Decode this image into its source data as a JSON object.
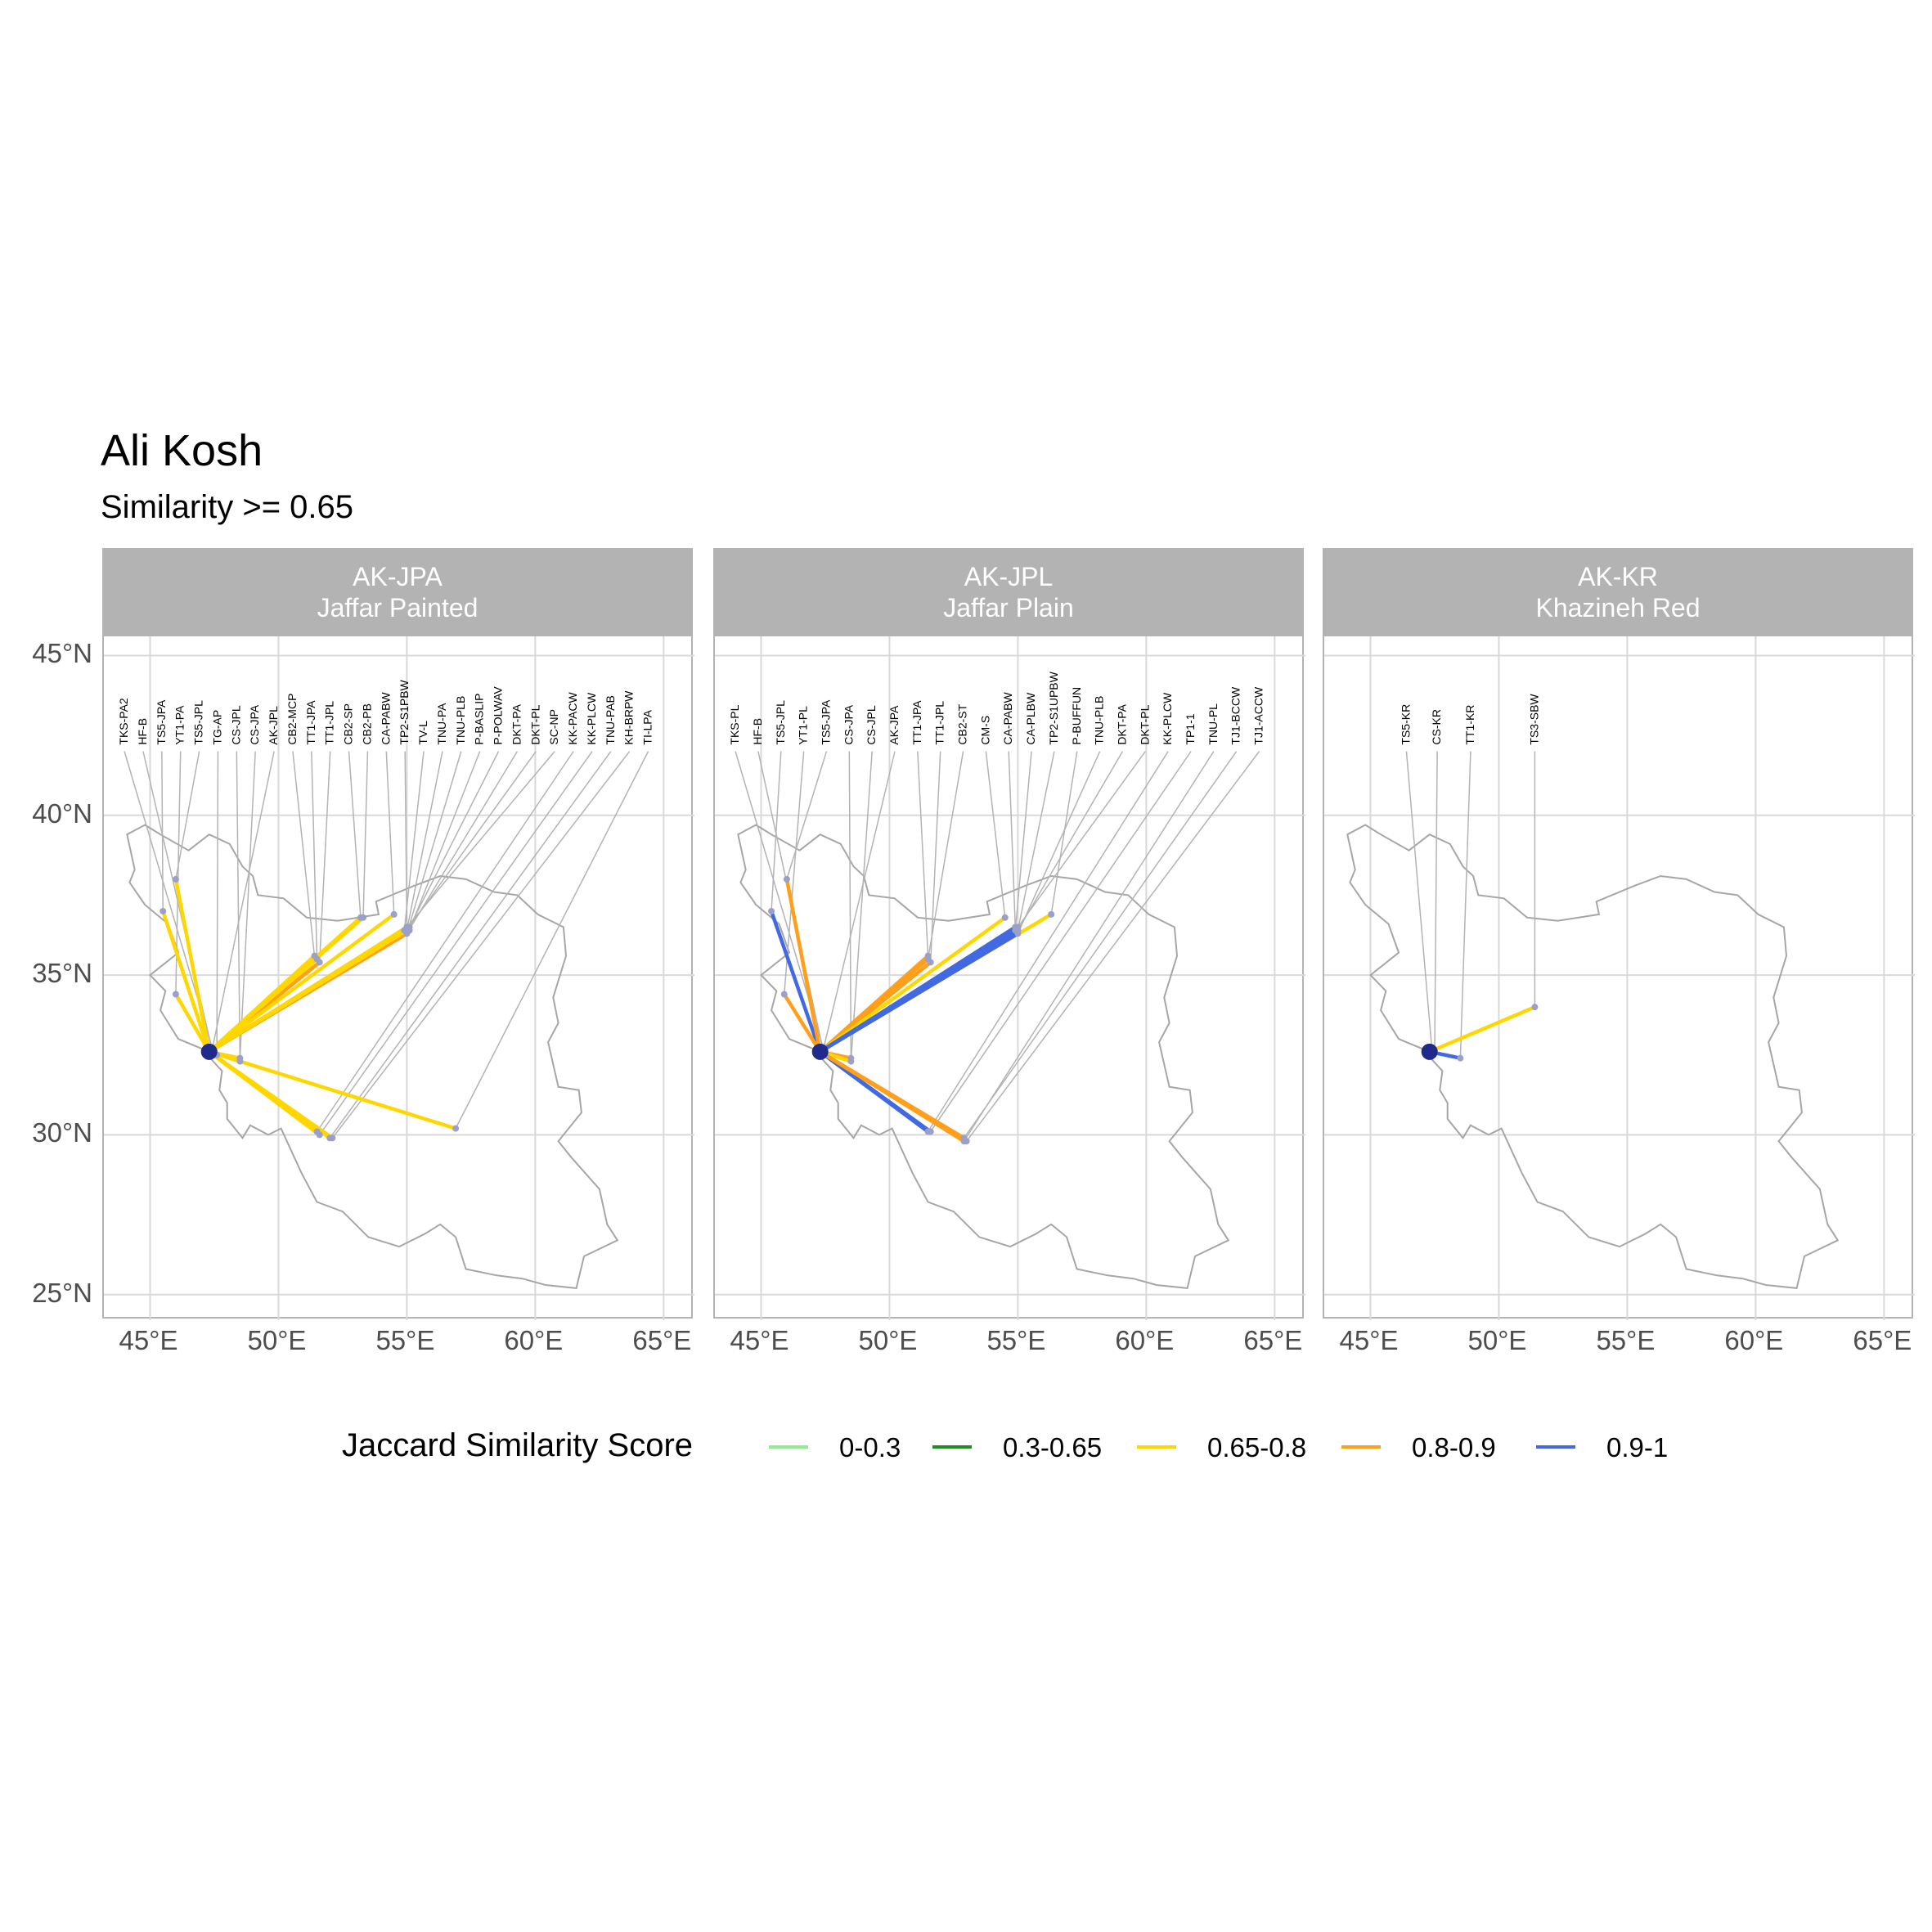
{
  "title": "Ali Kosh",
  "subtitle": "Similarity >= 0.65",
  "map_bounds": {
    "lon": [
      43.2,
      66.2
    ],
    "lat": [
      24.2,
      45.6
    ]
  },
  "axis": {
    "lat_ticks": [
      {
        "v": 45,
        "label": "45°N"
      },
      {
        "v": 40,
        "label": "40°N"
      },
      {
        "v": 35,
        "label": "35°N"
      },
      {
        "v": 30,
        "label": "30°N"
      },
      {
        "v": 25,
        "label": "25°N"
      }
    ],
    "lon_ticks": [
      {
        "v": 45,
        "label": "45°E"
      },
      {
        "v": 50,
        "label": "50°E"
      },
      {
        "v": 55,
        "label": "55°E"
      },
      {
        "v": 60,
        "label": "60°E"
      },
      {
        "v": 65,
        "label": "65°E"
      }
    ]
  },
  "colors": {
    "0-0.3": "#90ee90",
    "0.3-0.65": "#228b22",
    "0.65-0.8": "#ffd700",
    "0.8-0.9": "#ff9f1a",
    "0.9-1": "#4169e1",
    "origin": "#1f2a8a",
    "site": "#9aa0c8",
    "outline": "#a6a6a6",
    "grid": "#d9d9d9",
    "leader": "#b3b3b3"
  },
  "legend": {
    "title": "Jaccard Similarity Score",
    "items": [
      {
        "label": "0-0.3",
        "color": "#90ee90"
      },
      {
        "label": "0.3-0.65",
        "color": "#228b22"
      },
      {
        "label": "0.65-0.8",
        "color": "#ffd700"
      },
      {
        "label": "0.8-0.9",
        "color": "#ff9f1a"
      },
      {
        "label": "0.9-1",
        "color": "#4169e1"
      }
    ]
  },
  "panels": [
    {
      "code": "AK-JPA",
      "name": "Jaffar Painted",
      "origin": {
        "lon": 47.3,
        "lat": 32.6
      },
      "sites": [
        {
          "label": "TKS-PA2",
          "lon": 47.5,
          "lat": 32.5,
          "bin": "0.65-0.8"
        },
        {
          "label": "HF-B",
          "lon": 47.4,
          "lat": 32.7,
          "bin": "0.65-0.8"
        },
        {
          "label": "TS5-JPA",
          "lon": 45.5,
          "lat": 37.0,
          "bin": "0.65-0.8"
        },
        {
          "label": "YT1-PA",
          "lon": 46.0,
          "lat": 34.4,
          "bin": "0.65-0.8"
        },
        {
          "label": "TS5-JPL",
          "lon": 46.0,
          "lat": 38.0,
          "bin": "0.65-0.8"
        },
        {
          "label": "TG-AP",
          "lon": 47.6,
          "lat": 32.5,
          "bin": "0.65-0.8"
        },
        {
          "label": "CS-JPL",
          "lon": 48.5,
          "lat": 32.3,
          "bin": "0.65-0.8"
        },
        {
          "label": "CS-JPA",
          "lon": 48.5,
          "lat": 32.4,
          "bin": "0.65-0.8"
        },
        {
          "label": "AK-JPL",
          "lon": 47.4,
          "lat": 32.6,
          "bin": "0.9-1"
        },
        {
          "label": "CB2-MCP",
          "lon": 51.4,
          "lat": 35.6,
          "bin": "0.65-0.8"
        },
        {
          "label": "TT1-JPA",
          "lon": 51.5,
          "lat": 35.5,
          "bin": "0.65-0.8"
        },
        {
          "label": "TT1-JPL",
          "lon": 51.6,
          "lat": 35.4,
          "bin": "0.8-0.9"
        },
        {
          "label": "CB2-SP",
          "lon": 53.2,
          "lat": 36.8,
          "bin": "0.65-0.8"
        },
        {
          "label": "CB2-PB",
          "lon": 53.3,
          "lat": 36.8,
          "bin": "0.65-0.8"
        },
        {
          "label": "CA-PABW",
          "lon": 54.5,
          "lat": 36.9,
          "bin": "0.65-0.8"
        },
        {
          "label": "TP2-S1PBW",
          "lon": 55.0,
          "lat": 36.5,
          "bin": "0.65-0.8"
        },
        {
          "label": "TV-L",
          "lon": 54.9,
          "lat": 36.4,
          "bin": "0.8-0.9"
        },
        {
          "label": "TNU-PA",
          "lon": 55.0,
          "lat": 36.4,
          "bin": "0.8-0.9"
        },
        {
          "label": "TNU-PLB",
          "lon": 55.0,
          "lat": 36.3,
          "bin": "0.8-0.9"
        },
        {
          "label": "P-BASLIP",
          "lon": 55.1,
          "lat": 36.4,
          "bin": "0.65-0.8"
        },
        {
          "label": "P-POLWAV",
          "lon": 55.1,
          "lat": 36.5,
          "bin": "0.65-0.8"
        },
        {
          "label": "DKT-PA",
          "lon": 55.0,
          "lat": 36.3,
          "bin": "0.8-0.9"
        },
        {
          "label": "DKT-PL",
          "lon": 55.0,
          "lat": 36.4,
          "bin": "0.65-0.8"
        },
        {
          "label": "SC-NP",
          "lon": 55.0,
          "lat": 36.5,
          "bin": "0.65-0.8"
        },
        {
          "label": "KK-PACW",
          "lon": 51.5,
          "lat": 30.1,
          "bin": "0.65-0.8"
        },
        {
          "label": "KK-PLCW",
          "lon": 51.6,
          "lat": 30.0,
          "bin": "0.65-0.8"
        },
        {
          "label": "TNU-PAB",
          "lon": 52.0,
          "lat": 29.9,
          "bin": "0.65-0.8"
        },
        {
          "label": "KH-BRPW",
          "lon": 52.1,
          "lat": 29.9,
          "bin": "0.65-0.8"
        },
        {
          "label": "TI-LPA",
          "lon": 56.9,
          "lat": 30.2,
          "bin": "0.65-0.8"
        }
      ]
    },
    {
      "code": "AK-JPL",
      "name": "Jaffar Plain",
      "origin": {
        "lon": 47.3,
        "lat": 32.6
      },
      "sites": [
        {
          "label": "TKS-PL",
          "lon": 47.5,
          "lat": 32.5,
          "bin": "0.8-0.9"
        },
        {
          "label": "HF-B",
          "lon": 47.4,
          "lat": 32.7,
          "bin": "0.8-0.9"
        },
        {
          "label": "TS5-JPL",
          "lon": 45.4,
          "lat": 37.0,
          "bin": "0.9-1"
        },
        {
          "label": "YT1-PL",
          "lon": 45.9,
          "lat": 34.4,
          "bin": "0.8-0.9"
        },
        {
          "label": "TS5-JPA",
          "lon": 46.0,
          "lat": 38.0,
          "bin": "0.8-0.9"
        },
        {
          "label": "CS-JPA",
          "lon": 48.5,
          "lat": 32.4,
          "bin": "0.8-0.9"
        },
        {
          "label": "CS-JPL",
          "lon": 48.5,
          "lat": 32.3,
          "bin": "0.65-0.8"
        },
        {
          "label": "AK-JPA",
          "lon": 47.4,
          "lat": 32.6,
          "bin": "0.9-1"
        },
        {
          "label": "TT1-JPA",
          "lon": 51.5,
          "lat": 35.6,
          "bin": "0.8-0.9"
        },
        {
          "label": "TT1-JPL",
          "lon": 51.6,
          "lat": 35.4,
          "bin": "0.8-0.9"
        },
        {
          "label": "CB2-ST",
          "lon": 51.5,
          "lat": 35.5,
          "bin": "0.8-0.9"
        },
        {
          "label": "CM-S",
          "lon": 54.5,
          "lat": 36.8,
          "bin": "0.65-0.8"
        },
        {
          "label": "CA-PABW",
          "lon": 54.9,
          "lat": 36.5,
          "bin": "0.9-1"
        },
        {
          "label": "CA-PLBW",
          "lon": 54.9,
          "lat": 36.4,
          "bin": "0.9-1"
        },
        {
          "label": "TP2-S1UPBW",
          "lon": 55.0,
          "lat": 36.4,
          "bin": "0.9-1"
        },
        {
          "label": "P-BUFFUN",
          "lon": 56.3,
          "lat": 36.9,
          "bin": "0.65-0.8"
        },
        {
          "label": "TNU-PLB",
          "lon": 55.0,
          "lat": 36.3,
          "bin": "0.9-1"
        },
        {
          "label": "DKT-PA",
          "lon": 55.0,
          "lat": 36.4,
          "bin": "0.9-1"
        },
        {
          "label": "DKT-PL",
          "lon": 55.0,
          "lat": 36.5,
          "bin": "0.9-1"
        },
        {
          "label": "KK-PLCW",
          "lon": 51.5,
          "lat": 30.1,
          "bin": "0.9-1"
        },
        {
          "label": "TP1-1",
          "lon": 51.6,
          "lat": 30.1,
          "bin": "0.9-1"
        },
        {
          "label": "TNU-PL",
          "lon": 52.9,
          "lat": 29.8,
          "bin": "0.8-0.9"
        },
        {
          "label": "TJ1-BCCW",
          "lon": 52.9,
          "lat": 29.9,
          "bin": "0.8-0.9"
        },
        {
          "label": "TJ1-ACCW",
          "lon": 53.0,
          "lat": 29.8,
          "bin": "0.8-0.9"
        }
      ]
    },
    {
      "code": "AK-KR",
      "name": "Khazineh Red",
      "origin": {
        "lon": 47.3,
        "lat": 32.6
      },
      "sites": [
        {
          "label": "TS5-KR",
          "lon": 47.4,
          "lat": 32.6,
          "bin": "0.9-1"
        },
        {
          "label": "CS-KR",
          "lon": 47.5,
          "lat": 32.6,
          "bin": "0.9-1"
        },
        {
          "label": "TT1-KR",
          "lon": 48.5,
          "lat": 32.4,
          "bin": "0.9-1"
        },
        {
          "label": "TS3-SBW",
          "lon": 51.4,
          "lat": 34.0,
          "bin": "0.65-0.8"
        }
      ]
    }
  ]
}
